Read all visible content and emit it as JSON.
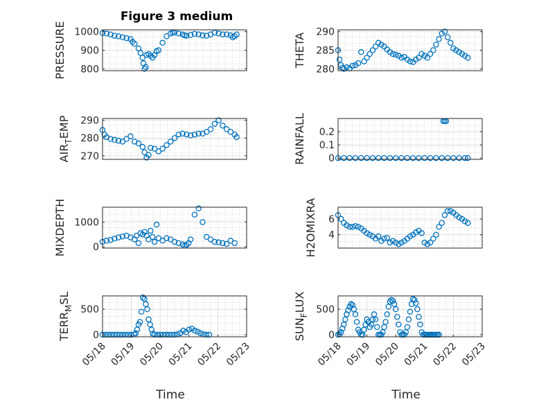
{
  "figure": {
    "title": "Figure 3 medium",
    "marker_color": "#0072BD",
    "axis_color": "#262626",
    "grid_color": "#c0c0c0"
  },
  "chart_data": [
    {
      "type": "scatter",
      "ylabel": "PRESSURE",
      "xlabel": "",
      "ylim": [
        790,
        1010
      ],
      "yticks": [
        800,
        900,
        1000
      ],
      "ytick_labels": [
        "800",
        "900",
        "1000"
      ],
      "xlim": [
        0,
        3.6
      ],
      "xticks": [],
      "xtick_labels": [],
      "series": [
        {
          "x": [
            0.0,
            0.1,
            0.2,
            0.3,
            0.4,
            0.5,
            0.6,
            0.7,
            0.75,
            0.8,
            0.9,
            0.95,
            1.0,
            1.02,
            1.05,
            1.08,
            1.1,
            1.15,
            1.2,
            1.25,
            1.3,
            1.35,
            1.4,
            1.5,
            1.6,
            1.7,
            1.75,
            1.8,
            1.9,
            2.0,
            2.05,
            2.1,
            2.2,
            2.3,
            2.4,
            2.5,
            2.6,
            2.7,
            2.8,
            2.9,
            3.0,
            3.1,
            3.2,
            3.25,
            3.3,
            3.35
          ],
          "y": [
            993,
            990,
            985,
            978,
            975,
            970,
            965,
            960,
            945,
            935,
            910,
            885,
            860,
            830,
            800,
            810,
            875,
            880,
            870,
            860,
            875,
            895,
            900,
            940,
            975,
            990,
            995,
            995,
            990,
            985,
            980,
            978,
            982,
            988,
            985,
            980,
            978,
            985,
            995,
            990,
            985,
            985,
            980,
            970,
            975,
            985
          ]
        }
      ]
    },
    {
      "type": "scatter",
      "ylabel": "THETA",
      "xlabel": "",
      "ylim": [
        279.5,
        290.5
      ],
      "yticks": [
        280,
        285,
        290
      ],
      "ytick_labels": [
        "280",
        "285",
        "290"
      ],
      "xlim": [
        0,
        5
      ],
      "xticks": [],
      "xtick_labels": [],
      "series": [
        {
          "x": [
            0.0,
            0.05,
            0.1,
            0.15,
            0.2,
            0.3,
            0.4,
            0.5,
            0.6,
            0.7,
            0.8,
            0.9,
            1.0,
            1.1,
            1.2,
            1.3,
            1.4,
            1.5,
            1.6,
            1.7,
            1.8,
            1.9,
            2.0,
            2.1,
            2.2,
            2.3,
            2.4,
            2.5,
            2.6,
            2.7,
            2.8,
            2.9,
            3.0,
            3.1,
            3.2,
            3.3,
            3.4,
            3.5,
            3.6,
            3.7,
            3.8,
            3.9,
            4.0,
            4.1,
            4.2,
            4.3,
            4.4,
            4.5
          ],
          "y": [
            285.0,
            282.5,
            281.0,
            280.3,
            280.0,
            280.4,
            280.1,
            280.8,
            281.0,
            281.5,
            284.5,
            282.0,
            283.0,
            284.0,
            285.0,
            286.0,
            287.0,
            286.5,
            286.0,
            285.2,
            284.5,
            284.0,
            283.8,
            283.5,
            283.0,
            283.2,
            282.5,
            282.0,
            281.8,
            282.5,
            283.0,
            284.0,
            283.5,
            283.0,
            284.0,
            285.0,
            286.5,
            288.0,
            289.5,
            290.0,
            288.5,
            287.0,
            285.5,
            285.0,
            284.5,
            284.0,
            283.5,
            283.0
          ]
        }
      ]
    },
    {
      "type": "scatter",
      "ylabel": "AIR_TEMP",
      "xlabel": "",
      "ylim": [
        268,
        291
      ],
      "yticks": [
        270,
        280,
        290
      ],
      "ytick_labels": [
        "270",
        "280",
        "290"
      ],
      "xlim": [
        0,
        3.6
      ],
      "xticks": [],
      "xtick_labels": [],
      "series": [
        {
          "x": [
            0.0,
            0.05,
            0.1,
            0.2,
            0.3,
            0.4,
            0.5,
            0.6,
            0.7,
            0.8,
            0.9,
            1.0,
            1.05,
            1.1,
            1.15,
            1.2,
            1.3,
            1.4,
            1.5,
            1.6,
            1.7,
            1.8,
            1.9,
            2.0,
            2.1,
            2.2,
            2.3,
            2.4,
            2.5,
            2.6,
            2.7,
            2.8,
            2.9,
            3.0,
            3.1,
            3.2,
            3.3,
            3.35
          ],
          "y": [
            284.5,
            282.0,
            280.5,
            279.5,
            279.0,
            278.5,
            278.0,
            279.5,
            281.0,
            278.0,
            277.0,
            275.0,
            272.0,
            269.0,
            270.5,
            274.5,
            274.0,
            272.5,
            274.0,
            276.0,
            278.0,
            280.0,
            282.0,
            282.5,
            282.0,
            281.5,
            282.0,
            282.5,
            282.5,
            283.5,
            285.0,
            288.0,
            290.0,
            287.0,
            285.0,
            283.5,
            282.0,
            280.5
          ]
        }
      ]
    },
    {
      "type": "scatter",
      "ylabel": "RAINFALL",
      "xlabel": "",
      "ylim": [
        -0.01,
        0.3
      ],
      "yticks": [
        0,
        0.1,
        0.2
      ],
      "ytick_labels": [
        "0",
        "0.1",
        "0.2"
      ],
      "xlim": [
        0,
        5
      ],
      "xticks": [],
      "xtick_labels": [],
      "series": [
        {
          "x": [
            0.0,
            0.2,
            0.4,
            0.6,
            0.8,
            1.0,
            1.2,
            1.4,
            1.6,
            1.8,
            2.0,
            2.2,
            2.4,
            2.6,
            2.8,
            3.0,
            3.2,
            3.4,
            3.6,
            3.65,
            3.7,
            3.75,
            3.8,
            4.0,
            4.2,
            4.4,
            4.5
          ],
          "y": [
            0,
            0,
            0,
            0,
            0,
            0,
            0,
            0,
            0,
            0,
            0,
            0,
            0,
            0,
            0,
            0,
            0,
            0,
            0,
            0.28,
            0.28,
            0.28,
            0,
            0,
            0,
            0,
            0
          ]
        }
      ]
    },
    {
      "type": "scatter",
      "ylabel": "MIXDEPTH",
      "xlabel": "",
      "ylim": [
        -50,
        1600
      ],
      "yticks": [
        0,
        1000
      ],
      "ytick_labels": [
        "0",
        "1000"
      ],
      "xlim": [
        0,
        3.6
      ],
      "xticks": [],
      "xtick_labels": [],
      "series": [
        {
          "x": [
            0.0,
            0.1,
            0.2,
            0.3,
            0.4,
            0.5,
            0.6,
            0.7,
            0.8,
            0.85,
            0.9,
            0.95,
            1.0,
            1.05,
            1.1,
            1.15,
            1.2,
            1.25,
            1.3,
            1.35,
            1.4,
            1.5,
            1.6,
            1.7,
            1.8,
            1.9,
            2.0,
            2.05,
            2.1,
            2.15,
            2.2,
            2.3,
            2.4,
            2.5,
            2.6,
            2.7,
            2.8,
            2.9,
            3.0,
            3.1,
            3.2,
            3.3
          ],
          "y": [
            200,
            250,
            280,
            330,
            380,
            420,
            450,
            380,
            300,
            450,
            150,
            550,
            500,
            600,
            450,
            300,
            650,
            400,
            200,
            900,
            350,
            250,
            350,
            300,
            200,
            150,
            100,
            50,
            80,
            150,
            300,
            1300,
            1550,
            1000,
            400,
            300,
            200,
            180,
            150,
            120,
            250,
            150
          ]
        }
      ]
    },
    {
      "type": "scatter",
      "ylabel": "H2OMIXRA",
      "xlabel": "",
      "ylim": [
        2.3,
        7.5
      ],
      "yticks": [
        4,
        6
      ],
      "ytick_labels": [
        "4",
        "6"
      ],
      "xlim": [
        0,
        5
      ],
      "xticks": [],
      "xtick_labels": [],
      "series": [
        {
          "x": [
            0.0,
            0.1,
            0.2,
            0.3,
            0.4,
            0.5,
            0.6,
            0.7,
            0.8,
            0.9,
            1.0,
            1.1,
            1.2,
            1.3,
            1.4,
            1.5,
            1.6,
            1.7,
            1.8,
            1.9,
            2.0,
            2.1,
            2.2,
            2.3,
            2.4,
            2.5,
            2.6,
            2.7,
            2.8,
            2.9,
            3.0,
            3.1,
            3.2,
            3.3,
            3.4,
            3.5,
            3.6,
            3.7,
            3.8,
            3.9,
            4.0,
            4.1,
            4.2,
            4.3,
            4.4,
            4.5
          ],
          "y": [
            6.5,
            6.0,
            5.5,
            5.2,
            5.0,
            5.0,
            5.1,
            5.0,
            4.8,
            4.5,
            4.2,
            4.0,
            3.8,
            3.5,
            3.8,
            3.2,
            3.5,
            3.6,
            3.0,
            3.2,
            3.0,
            2.8,
            3.0,
            3.2,
            3.5,
            3.8,
            4.0,
            4.3,
            4.5,
            4.2,
            3.0,
            2.8,
            3.0,
            3.5,
            4.0,
            5.0,
            5.5,
            6.5,
            7.0,
            7.0,
            6.8,
            6.5,
            6.2,
            6.0,
            5.7,
            5.5
          ]
        }
      ]
    },
    {
      "type": "scatter",
      "ylabel": "TERR_MSL",
      "xlabel": "Time",
      "ylim": [
        -40,
        760
      ],
      "yticks": [
        0,
        500
      ],
      "ytick_labels": [
        "0",
        "500"
      ],
      "xlim": [
        0,
        5
      ],
      "xticks": [
        0,
        1,
        2,
        3,
        4,
        5
      ],
      "xtick_labels": [
        "05/18",
        "05/19",
        "05/20",
        "05/21",
        "05/22",
        "05/23"
      ],
      "series": [
        {
          "x": [
            0.0,
            0.1,
            0.2,
            0.3,
            0.4,
            0.5,
            0.6,
            0.7,
            0.8,
            0.9,
            1.0,
            1.1,
            1.15,
            1.2,
            1.25,
            1.3,
            1.35,
            1.4,
            1.45,
            1.5,
            1.55,
            1.6,
            1.65,
            1.7,
            1.75,
            1.8,
            1.9,
            2.0,
            2.1,
            2.2,
            2.3,
            2.4,
            2.5,
            2.6,
            2.7,
            2.8,
            2.9,
            3.0,
            3.1,
            3.2,
            3.3,
            3.4,
            3.5,
            3.6,
            3.7
          ],
          "y": [
            0,
            0,
            0,
            0,
            0,
            0,
            0,
            0,
            0,
            0,
            0,
            5,
            30,
            100,
            200,
            250,
            450,
            730,
            700,
            600,
            500,
            300,
            200,
            100,
            20,
            0,
            0,
            0,
            0,
            0,
            0,
            0,
            0,
            10,
            30,
            80,
            50,
            100,
            120,
            80,
            60,
            30,
            10,
            0,
            0
          ]
        }
      ]
    },
    {
      "type": "scatter",
      "ylabel": "SUN_FLUX",
      "xlabel": "Time",
      "ylim": [
        -40,
        760
      ],
      "yticks": [
        0,
        500
      ],
      "ytick_labels": [
        "0",
        "500"
      ],
      "xlim": [
        0,
        5
      ],
      "xticks": [
        0,
        1,
        2,
        3,
        4,
        5
      ],
      "xtick_labels": [
        "05/18",
        "05/19",
        "05/20",
        "05/21",
        "05/22",
        "05/23"
      ],
      "series": [
        {
          "x": [
            0.0,
            0.05,
            0.1,
            0.15,
            0.2,
            0.25,
            0.3,
            0.35,
            0.4,
            0.45,
            0.5,
            0.55,
            0.6,
            0.65,
            0.7,
            0.75,
            0.8,
            0.85,
            0.9,
            0.95,
            1.0,
            1.05,
            1.1,
            1.15,
            1.2,
            1.25,
            1.3,
            1.35,
            1.4,
            1.45,
            1.5,
            1.55,
            1.6,
            1.65,
            1.7,
            1.75,
            1.8,
            1.85,
            1.9,
            1.95,
            2.0,
            2.05,
            2.1,
            2.15,
            2.2,
            2.25,
            2.3,
            2.35,
            2.4,
            2.45,
            2.5,
            2.55,
            2.6,
            2.65,
            2.7,
            2.75,
            2.8,
            2.85,
            2.9,
            2.95,
            3.0,
            3.05,
            3.1,
            3.15,
            3.2,
            3.25,
            3.3,
            3.35,
            3.4,
            3.45,
            3.5
          ],
          "y": [
            0,
            10,
            50,
            120,
            200,
            300,
            400,
            480,
            550,
            600,
            580,
            500,
            400,
            250,
            100,
            50,
            0,
            0,
            100,
            200,
            300,
            250,
            150,
            200,
            300,
            400,
            300,
            150,
            0,
            0,
            0,
            50,
            150,
            250,
            400,
            550,
            650,
            680,
            660,
            600,
            500,
            350,
            200,
            50,
            0,
            0,
            0,
            50,
            150,
            300,
            450,
            600,
            700,
            680,
            620,
            500,
            350,
            200,
            50,
            0,
            0,
            0,
            0,
            0,
            0,
            0,
            0,
            0,
            0,
            0,
            0
          ]
        }
      ]
    }
  ]
}
